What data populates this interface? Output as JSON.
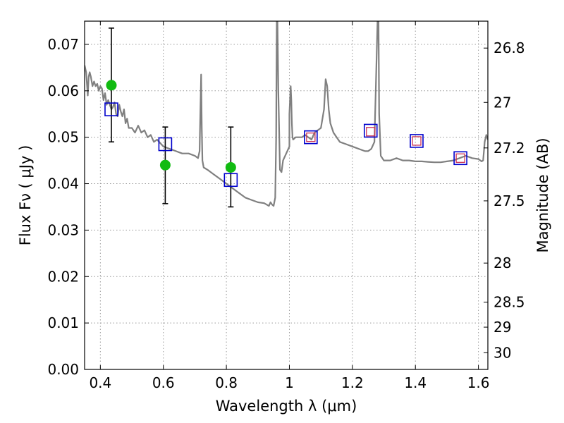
{
  "chart_data": {
    "type": "scatter",
    "xlabel": "Wavelength  λ (μm)",
    "ylabel": "Flux  Fν  ( μJy )",
    "ylabel_right": "Magnitude (AB)",
    "xlim": [
      0.35,
      1.63
    ],
    "ylim": [
      0.0,
      0.075
    ],
    "grid": true,
    "x_ticks": [
      0.4,
      0.6,
      0.8,
      1.0,
      1.2,
      1.4,
      1.6
    ],
    "x_tick_labels": [
      "0.4",
      "0.6",
      "0.8",
      "1",
      "1.2",
      "1.4",
      "1.6"
    ],
    "y_ticks": [
      0.0,
      0.01,
      0.02,
      0.03,
      0.04,
      0.05,
      0.06,
      0.07
    ],
    "y_tick_labels": [
      "0.00",
      "0.01",
      "0.02",
      "0.03",
      "0.04",
      "0.05",
      "0.06",
      "0.07"
    ],
    "right_ticks": [
      {
        "flux": 0.0692,
        "label": "26.8"
      },
      {
        "flux": 0.0575,
        "label": "27"
      },
      {
        "flux": 0.0477,
        "label": "27.2"
      },
      {
        "flux": 0.0363,
        "label": "27.5"
      },
      {
        "flux": 0.0229,
        "label": "28"
      },
      {
        "flux": 0.0145,
        "label": "28.5"
      },
      {
        "flux": 0.0091,
        "label": "29"
      },
      {
        "flux": 0.0036,
        "label": "30"
      }
    ],
    "colors": {
      "spectrum": "#808080",
      "model_box": "#0000cc",
      "observed_box": "#cc3355",
      "detection": "#11bb11",
      "errorbar": "#000000",
      "grid": "#999999"
    },
    "series": [
      {
        "kind": "spectrum",
        "x": [
          0.35,
          0.355,
          0.36,
          0.363,
          0.366,
          0.37,
          0.375,
          0.38,
          0.385,
          0.39,
          0.395,
          0.4,
          0.405,
          0.41,
          0.415,
          0.42,
          0.425,
          0.43,
          0.435,
          0.44,
          0.445,
          0.45,
          0.455,
          0.46,
          0.465,
          0.47,
          0.475,
          0.48,
          0.485,
          0.49,
          0.5,
          0.51,
          0.52,
          0.53,
          0.54,
          0.55,
          0.56,
          0.57,
          0.58,
          0.6,
          0.62,
          0.64,
          0.66,
          0.68,
          0.7,
          0.71,
          0.715,
          0.72,
          0.722,
          0.724,
          0.728,
          0.74,
          0.76,
          0.78,
          0.8,
          0.82,
          0.84,
          0.86,
          0.88,
          0.9,
          0.92,
          0.935,
          0.94,
          0.945,
          0.95,
          0.955,
          0.958,
          0.96,
          0.962,
          0.965,
          0.97,
          0.975,
          0.98,
          0.99,
          1.0,
          1.0,
          1.004,
          1.006,
          1.008,
          1.01,
          1.012,
          1.02,
          1.03,
          1.04,
          1.05,
          1.06,
          1.07,
          1.08,
          1.1,
          1.11,
          1.115,
          1.12,
          1.125,
          1.13,
          1.14,
          1.15,
          1.16,
          1.18,
          1.2,
          1.22,
          1.24,
          1.25,
          1.26,
          1.27,
          1.28,
          1.283,
          1.285,
          1.29,
          1.295,
          1.3,
          1.32,
          1.34,
          1.36,
          1.38,
          1.4,
          1.42,
          1.44,
          1.46,
          1.48,
          1.5,
          1.52,
          1.54,
          1.56,
          1.58,
          1.6,
          1.61,
          1.615,
          1.62,
          1.625,
          1.63
        ],
        "y": [
          0.0655,
          0.064,
          0.059,
          0.063,
          0.064,
          0.063,
          0.061,
          0.062,
          0.061,
          0.0615,
          0.06,
          0.061,
          0.0605,
          0.058,
          0.0595,
          0.057,
          0.058,
          0.057,
          0.056,
          0.0565,
          0.0575,
          0.055,
          0.0545,
          0.057,
          0.0555,
          0.0545,
          0.056,
          0.053,
          0.054,
          0.052,
          0.052,
          0.051,
          0.0525,
          0.051,
          0.0515,
          0.05,
          0.0505,
          0.049,
          0.0495,
          0.048,
          0.0475,
          0.047,
          0.0465,
          0.0465,
          0.046,
          0.0455,
          0.047,
          0.0635,
          0.052,
          0.045,
          0.0435,
          0.043,
          0.042,
          0.041,
          0.04,
          0.039,
          0.038,
          0.037,
          0.0365,
          0.036,
          0.0358,
          0.0352,
          0.036,
          0.0355,
          0.0352,
          0.037,
          0.05,
          0.0755,
          0.0755,
          0.06,
          0.043,
          0.0425,
          0.045,
          0.0465,
          0.048,
          0.055,
          0.061,
          0.058,
          0.053,
          0.05,
          0.0495,
          0.05,
          0.05,
          0.05,
          0.0505,
          0.05,
          0.0495,
          0.051,
          0.052,
          0.056,
          0.0625,
          0.061,
          0.056,
          0.053,
          0.051,
          0.05,
          0.049,
          0.0485,
          0.048,
          0.0475,
          0.047,
          0.047,
          0.0475,
          0.049,
          0.0755,
          0.0755,
          0.055,
          0.046,
          0.0455,
          0.045,
          0.045,
          0.0455,
          0.045,
          0.045,
          0.0448,
          0.0448,
          0.0447,
          0.0446,
          0.0446,
          0.0448,
          0.045,
          0.0455,
          0.046,
          0.0455,
          0.0453,
          0.0448,
          0.045,
          0.049,
          0.0505,
          0.0495
        ]
      },
      {
        "kind": "model_box",
        "x": [
          0.435,
          0.606,
          0.814,
          1.068,
          1.258,
          1.404,
          1.543
        ],
        "y": [
          0.056,
          0.0485,
          0.0408,
          0.05,
          0.0514,
          0.0492,
          0.0455
        ]
      },
      {
        "kind": "observed_box",
        "x": [
          1.068,
          1.258,
          1.404,
          1.543
        ],
        "y": [
          0.05,
          0.0512,
          0.0492,
          0.0455
        ]
      },
      {
        "kind": "detection",
        "x": [
          0.435,
          0.606,
          0.814
        ],
        "y": [
          0.0612,
          0.044,
          0.0435
        ],
        "yerr_low": [
          0.0122,
          0.0083,
          0.0085
        ],
        "yerr_high": [
          0.0123,
          0.0082,
          0.0087
        ]
      }
    ]
  }
}
